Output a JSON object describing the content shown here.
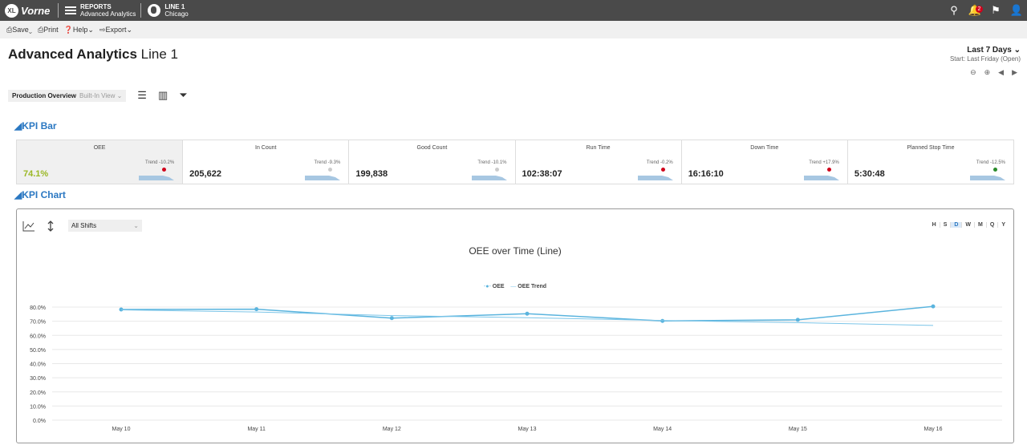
{
  "app": {
    "logo_mark": "XL",
    "logo_text": "Vorne",
    "reports_label": "REPORTS",
    "reports_page": "Advanced Analytics",
    "line_name": "LINE 1",
    "line_location": "Chicago",
    "notification_count": "2"
  },
  "toolbar": {
    "save": "⎙Save⌄",
    "print": "⎙Print",
    "help": "❓Help⌄",
    "export": "⇨Export⌄"
  },
  "page": {
    "title": "Advanced Analytics",
    "subtitle": "Line 1",
    "range": "Last 7 Days ⌄",
    "start": "Start: Last Friday (Open)"
  },
  "view": {
    "name": "Production Overview",
    "type": "Built-In View ⌄"
  },
  "sections": {
    "kpi_bar": "◢KPI Bar",
    "kpi_chart": "◢KPI Chart"
  },
  "kpis": [
    {
      "name": "OEE",
      "value": "74.1%",
      "trend": "Trend -10.2%",
      "dot_color": "#d0021b",
      "value_color": "#9bb826"
    },
    {
      "name": "In Count",
      "value": "205,622",
      "trend": "Trend -9.3%",
      "dot_color": "#cccccc",
      "value_color": "#222222"
    },
    {
      "name": "Good Count",
      "value": "199,838",
      "trend": "Trend -10.1%",
      "dot_color": "#cccccc",
      "value_color": "#222222"
    },
    {
      "name": "Run Time",
      "value": "102:38:07",
      "trend": "Trend -0.2%",
      "dot_color": "#d0021b",
      "value_color": "#222222"
    },
    {
      "name": "Down Time",
      "value": "16:16:10",
      "trend": "Trend +17.9%",
      "dot_color": "#d0021b",
      "value_color": "#222222"
    },
    {
      "name": "Planned Stop Time",
      "value": "5:30:48",
      "trend": "Trend -12.5%",
      "dot_color": "#2a8a2a",
      "value_color": "#222222"
    }
  ],
  "chart_controls": {
    "shift": "All Shifts",
    "shift_caret": "⌄",
    "periods": [
      "H",
      "S",
      "D",
      "W",
      "M",
      "Q",
      "Y"
    ],
    "active_period": "D"
  },
  "chart_data": {
    "type": "line",
    "title": "OEE over Time (Line)",
    "categories": [
      "May 10",
      "May 11",
      "May 12",
      "May 13",
      "May 14",
      "May 15",
      "May 16"
    ],
    "series": [
      {
        "name": "OEE",
        "values": [
          78.3,
          78.5,
          72.2,
          75.3,
          70.2,
          71.0,
          80.5
        ],
        "color": "#5ab4de"
      },
      {
        "name": "OEE Trend",
        "values": [
          78.0,
          76.5,
          74.0,
          72.5,
          70.5,
          69.0,
          67.0
        ],
        "color": "#7cc5e8"
      }
    ],
    "yticks": [
      "80.0%",
      "70.0%",
      "60.0%",
      "50.0%",
      "40.0%",
      "30.0%",
      "20.0%",
      "10.0%",
      "0.0%"
    ],
    "ylim": [
      0,
      80
    ],
    "xlabel": "",
    "ylabel": ""
  }
}
